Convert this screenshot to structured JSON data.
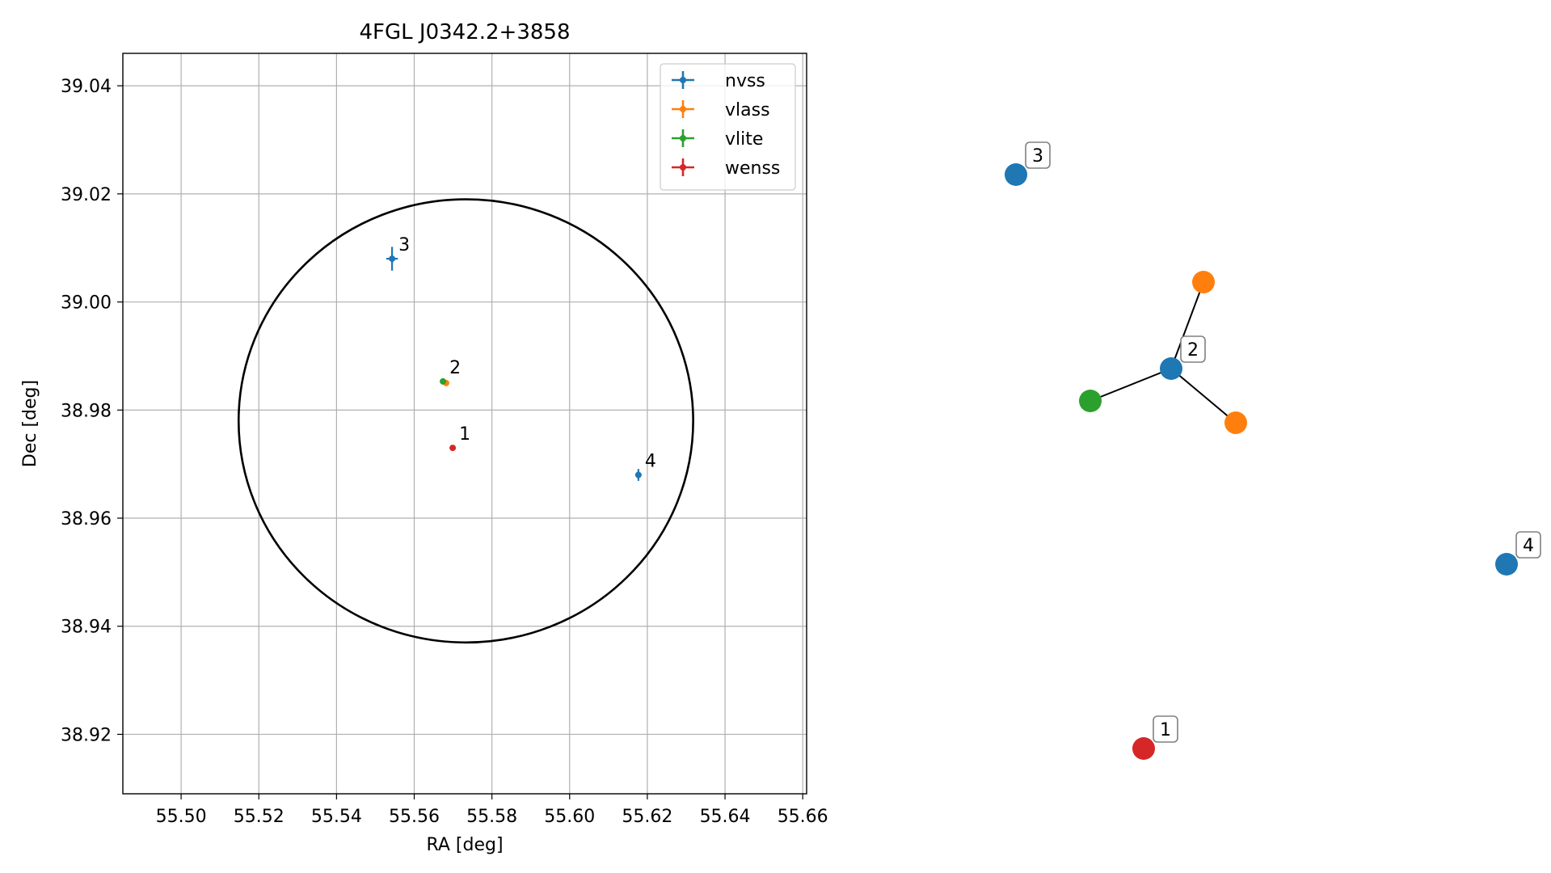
{
  "chart_data": [
    {
      "type": "scatter",
      "title": "4FGL J0342.2+3858",
      "xlabel": "RA [deg]",
      "ylabel": "Dec [deg]",
      "xlim": [
        55.485,
        55.661
      ],
      "ylim": [
        38.909,
        39.046
      ],
      "xticks": [
        "55.50",
        "55.52",
        "55.54",
        "55.56",
        "55.58",
        "55.60",
        "55.62",
        "55.64",
        "55.66"
      ],
      "yticks": [
        "38.92",
        "38.94",
        "38.96",
        "38.98",
        "39.00",
        "39.02",
        "39.04"
      ],
      "grid": true,
      "legend_position": "top-right",
      "colors": {
        "nvss": "#1f77b4",
        "vlass": "#ff7f0e",
        "vlite": "#2ca02c",
        "wenss": "#d62728"
      },
      "series": [
        {
          "name": "nvss",
          "points": [
            {
              "x": 55.5543,
              "y": 39.008,
              "xerr": 0.0015,
              "yerr": 0.0022,
              "label": "3"
            },
            {
              "x": 55.6177,
              "y": 38.968,
              "xerr": 0.0008,
              "yerr": 0.0011,
              "label": "4"
            }
          ]
        },
        {
          "name": "vlass",
          "points": [
            {
              "x": 55.5682,
              "y": 38.985,
              "xerr": 0.0002,
              "yerr": 0.0002,
              "label": ""
            }
          ]
        },
        {
          "name": "vlite",
          "points": [
            {
              "x": 55.5674,
              "y": 38.9853,
              "xerr": 0.0004,
              "yerr": 0.0003,
              "label": "2"
            }
          ]
        },
        {
          "name": "wenss",
          "points": [
            {
              "x": 55.5699,
              "y": 38.973,
              "xerr": 0.0003,
              "yerr": 0.0003,
              "label": "1"
            }
          ]
        }
      ],
      "ellipse": {
        "center": [
          55.5733,
          38.978
        ],
        "ra_radius": 0.0585,
        "dec_radius": 0.041,
        "color": "#000000"
      }
    },
    {
      "type": "network",
      "nodes": [
        {
          "id": "n3",
          "source": "nvss",
          "label": "3"
        },
        {
          "id": "n2",
          "source": "nvss",
          "label": "2"
        },
        {
          "id": "v1",
          "source": "vlass",
          "label": ""
        },
        {
          "id": "v2",
          "source": "vlass",
          "label": ""
        },
        {
          "id": "g1",
          "source": "vlite",
          "label": ""
        },
        {
          "id": "n4",
          "source": "nvss",
          "label": "4"
        },
        {
          "id": "w1",
          "source": "wenss",
          "label": "1"
        }
      ],
      "edges": [
        [
          "n2",
          "v1"
        ],
        [
          "n2",
          "v2"
        ],
        [
          "n2",
          "g1"
        ]
      ]
    }
  ]
}
